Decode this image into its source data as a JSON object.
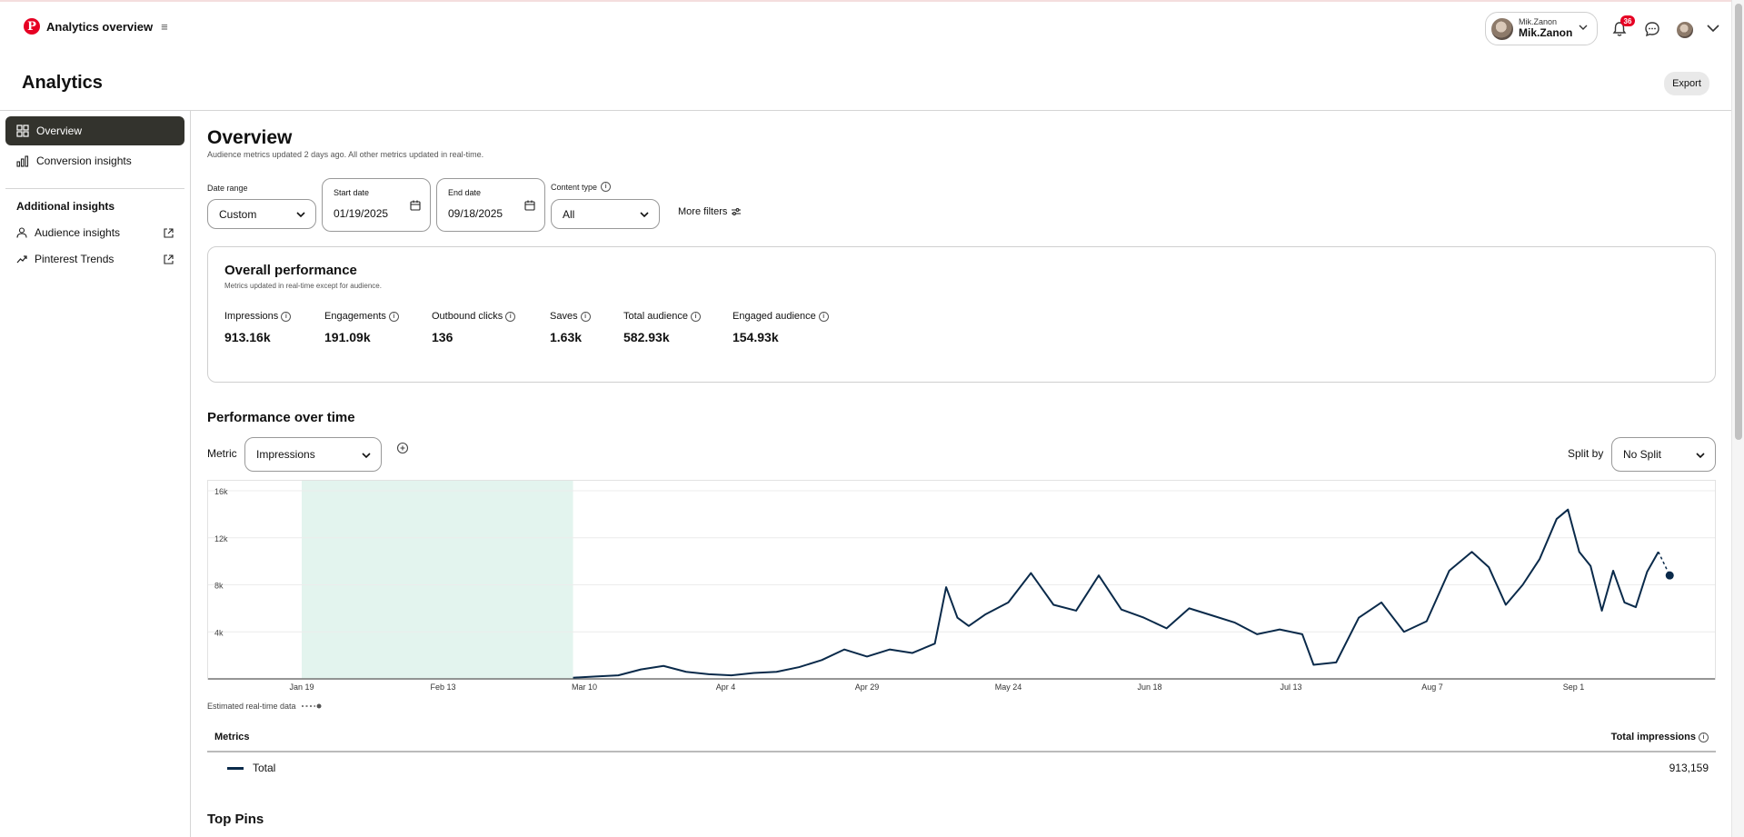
{
  "header": {
    "brand_title": "Analytics overview",
    "menu_glyph": "≡",
    "account_small": "Mik.Zanon",
    "account_name": "Mik.Zanon",
    "notification_count": "36"
  },
  "page": {
    "title": "Analytics",
    "export_label": "Export"
  },
  "sidebar": {
    "items": [
      {
        "label": "Overview",
        "icon": "grid-icon",
        "active": true
      },
      {
        "label": "Conversion insights",
        "icon": "conversion-icon",
        "active": false
      }
    ],
    "additional_heading": "Additional insights",
    "external_items": [
      {
        "label": "Audience insights",
        "icon": "person-icon"
      },
      {
        "label": "Pinterest Trends",
        "icon": "trend-icon"
      }
    ]
  },
  "overview": {
    "title": "Overview",
    "subtitle": "Audience metrics updated 2 days ago. All other metrics updated in real-time."
  },
  "filters": {
    "date_range_label": "Date range",
    "date_range_value": "Custom",
    "start_date_label": "Start date",
    "start_date_value": "01/19/2025",
    "end_date_label": "End date",
    "end_date_value": "09/18/2025",
    "content_type_label": "Content type",
    "content_type_value": "All",
    "more_filters_label": "More filters"
  },
  "performance": {
    "title": "Overall performance",
    "subtitle": "Metrics updated in real-time except for audience.",
    "metrics": [
      {
        "label": "Impressions",
        "value": "913.16k"
      },
      {
        "label": "Engagements",
        "value": "191.09k"
      },
      {
        "label": "Outbound clicks",
        "value": "136"
      },
      {
        "label": "Saves",
        "value": "1.63k"
      },
      {
        "label": "Total audience",
        "value": "582.93k"
      },
      {
        "label": "Engaged audience",
        "value": "154.93k"
      }
    ]
  },
  "over_time": {
    "title": "Performance over time",
    "metric_label": "Metric",
    "metric_value": "Impressions",
    "split_label": "Split by",
    "split_value": "No Split",
    "estimated_label": "Estimated real-time data"
  },
  "chart_data": {
    "type": "line",
    "title": "",
    "xlabel": "",
    "ylabel": "",
    "ylim": [
      0,
      16000
    ],
    "y_ticks": [
      4000,
      8000,
      12000,
      16000
    ],
    "y_tick_labels": [
      "4k",
      "8k",
      "12k",
      "16k"
    ],
    "x_tick_labels": [
      "Jan 19",
      "Feb 13",
      "Mar 10",
      "Apr 4",
      "Apr 29",
      "May 24",
      "Jun 18",
      "Jul 13",
      "Aug 7",
      "Sep 1"
    ],
    "x_tick_dates": [
      "2025-01-19",
      "2025-02-13",
      "2025-03-10",
      "2025-04-04",
      "2025-04-29",
      "2025-05-24",
      "2025-06-18",
      "2025-07-13",
      "2025-08-07",
      "2025-09-01"
    ],
    "highlight_range": [
      "2025-01-19",
      "2025-03-08"
    ],
    "grid": true,
    "series": [
      {
        "color": "#0a2a4a",
        "x": [
          "2025-03-08",
          "2025-03-12",
          "2025-03-16",
          "2025-03-20",
          "2025-03-24",
          "2025-03-28",
          "2025-04-01",
          "2025-04-05",
          "2025-04-09",
          "2025-04-13",
          "2025-04-17",
          "2025-04-21",
          "2025-04-25",
          "2025-04-29",
          "2025-05-03",
          "2025-05-07",
          "2025-05-11",
          "2025-05-13",
          "2025-05-15",
          "2025-05-17",
          "2025-05-20",
          "2025-05-24",
          "2025-05-28",
          "2025-06-01",
          "2025-06-05",
          "2025-06-09",
          "2025-06-13",
          "2025-06-17",
          "2025-06-21",
          "2025-06-25",
          "2025-06-29",
          "2025-07-03",
          "2025-07-07",
          "2025-07-11",
          "2025-07-15",
          "2025-07-17",
          "2025-07-21",
          "2025-07-25",
          "2025-07-29",
          "2025-08-02",
          "2025-08-06",
          "2025-08-10",
          "2025-08-14",
          "2025-08-17",
          "2025-08-20",
          "2025-08-23",
          "2025-08-26",
          "2025-08-29",
          "2025-08-31",
          "2025-09-02",
          "2025-09-04",
          "2025-09-06",
          "2025-09-08",
          "2025-09-10",
          "2025-09-12",
          "2025-09-14",
          "2025-09-16",
          "2025-09-18"
        ],
        "values": [
          100,
          200,
          300,
          800,
          1100,
          600,
          400,
          300,
          500,
          600,
          1000,
          1600,
          2500,
          1900,
          2500,
          2200,
          3000,
          7800,
          5200,
          4500,
          5500,
          6500,
          9000,
          6300,
          5800,
          8800,
          5900,
          5200,
          4300,
          6000,
          5400,
          4800,
          3800,
          4200,
          3800,
          1200,
          1400,
          5200,
          6500,
          4000,
          4900,
          9200,
          10800,
          9500,
          6300,
          8000,
          10200,
          13600,
          14400,
          10800,
          9600,
          5800,
          9200,
          6500,
          6100,
          9100,
          10800,
          8800
        ],
        "realtime_from": "2025-09-16"
      }
    ]
  },
  "metrics_table": {
    "col_metric": "Metrics",
    "col_total": "Total impressions",
    "rows": [
      {
        "label": "Total",
        "value": "913,159"
      }
    ]
  },
  "top_pins": {
    "title": "Top Pins"
  }
}
